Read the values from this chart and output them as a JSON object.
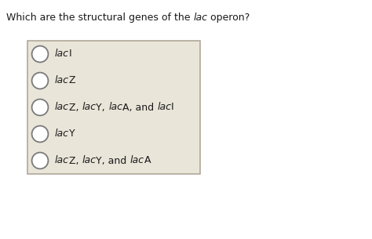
{
  "question_parts": [
    {
      "text": "Which are the structural genes of the ",
      "italic": false
    },
    {
      "text": "lac",
      "italic": true
    },
    {
      "text": " operon?",
      "italic": false
    }
  ],
  "options": [
    [
      {
        "text": "lac",
        "italic": true
      },
      {
        "text": "I",
        "italic": false
      }
    ],
    [
      {
        "text": "lac",
        "italic": true
      },
      {
        "text": "Z",
        "italic": false
      }
    ],
    [
      {
        "text": "lac",
        "italic": true
      },
      {
        "text": "Z, ",
        "italic": false
      },
      {
        "text": "lac",
        "italic": true
      },
      {
        "text": "Y, ",
        "italic": false
      },
      {
        "text": "lac",
        "italic": true
      },
      {
        "text": "A, and ",
        "italic": false
      },
      {
        "text": "lac",
        "italic": true
      },
      {
        "text": "I",
        "italic": false
      }
    ],
    [
      {
        "text": "lac",
        "italic": true
      },
      {
        "text": "Y",
        "italic": false
      }
    ],
    [
      {
        "text": "lac",
        "italic": true
      },
      {
        "text": "Z, ",
        "italic": false
      },
      {
        "text": "lac",
        "italic": true
      },
      {
        "text": "Y, and ",
        "italic": false
      },
      {
        "text": "lac",
        "italic": true
      },
      {
        "text": "A",
        "italic": false
      }
    ]
  ],
  "bg_color": "#ffffff",
  "box_facecolor": "#e9e5d9",
  "box_edgecolor": "#b0a898",
  "text_color": "#1a1a1a",
  "circle_edge_color": "#7a7a7a",
  "circle_face_color": "#ffffff",
  "fontsize": 9.0,
  "fig_width": 4.74,
  "fig_height": 3.05,
  "dpi": 100
}
